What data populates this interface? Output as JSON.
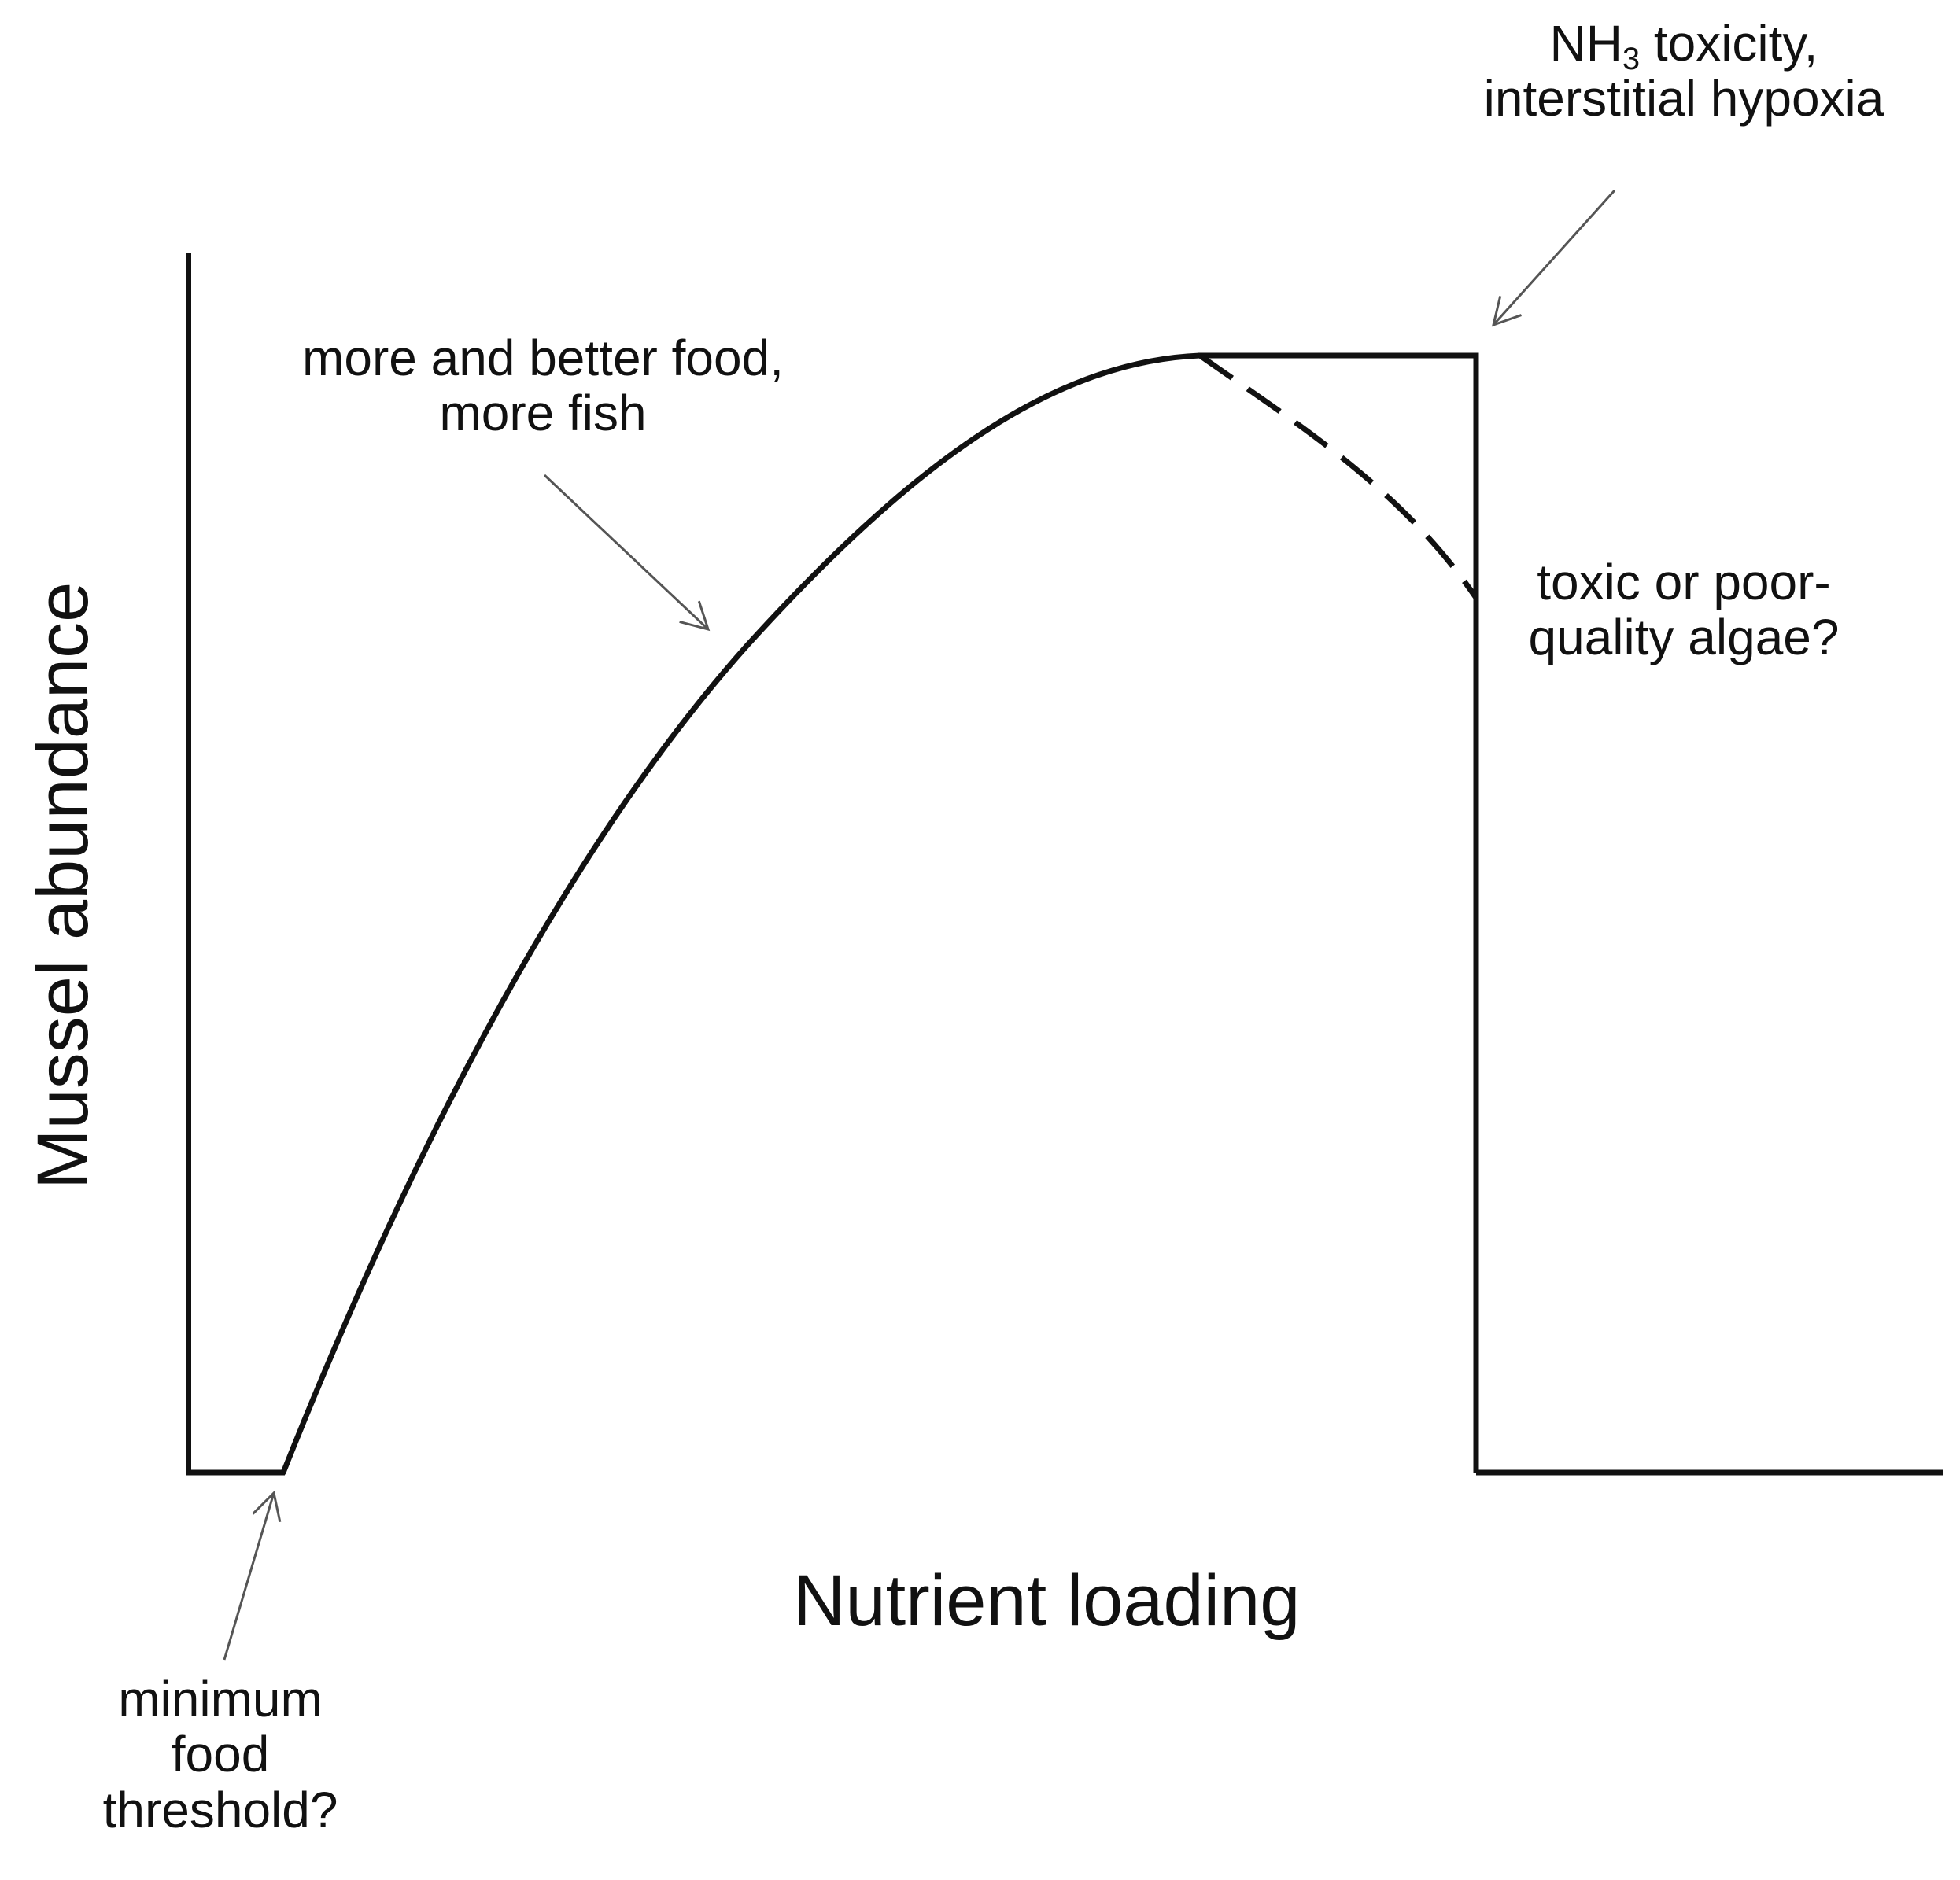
{
  "diagram": {
    "axes": {
      "x_label": "Nutrient loading",
      "y_label": "Mussel abundance"
    },
    "annotations": {
      "food_fish": [
        "more and better food,",
        "more fish"
      ],
      "toxicity": {
        "line1_main": "NH",
        "line1_sub": "3",
        "line1_rest": " toxicity,",
        "line2": "interstitial hypoxia"
      },
      "algae": [
        "toxic or poor-",
        "quality algae?"
      ],
      "threshold": [
        "minimum",
        "food",
        "threshold?"
      ]
    },
    "curves": [
      {
        "name": "main-response",
        "style": "solid"
      },
      {
        "name": "algae-decline",
        "style": "dashed"
      },
      {
        "name": "toxicity-cutoff",
        "style": "solid"
      }
    ],
    "colors": {
      "ink": "#111111",
      "arrow": "#555555",
      "background": "#ffffff"
    }
  }
}
